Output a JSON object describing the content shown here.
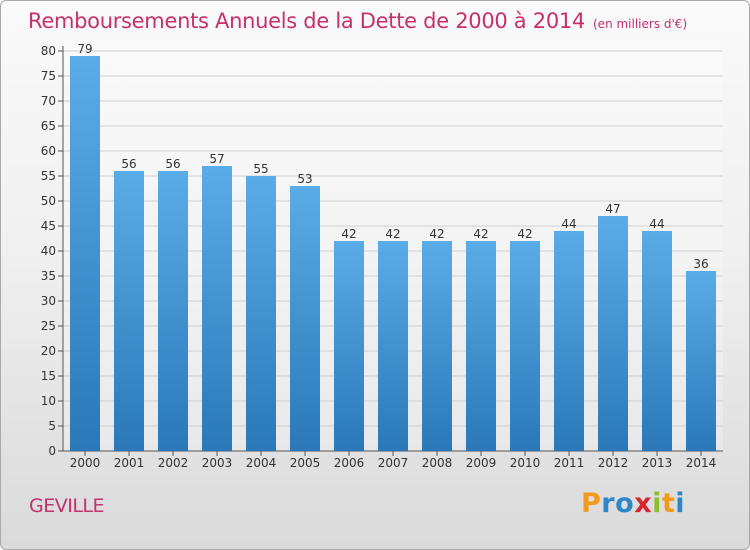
{
  "chart_data": {
    "type": "bar",
    "title": "Remboursements Annuels de la Dette de 2000 à 2014",
    "subtitle": "(en milliers d'€)",
    "categories": [
      "2000",
      "2001",
      "2002",
      "2003",
      "2004",
      "2005",
      "2006",
      "2007",
      "2008",
      "2009",
      "2010",
      "2011",
      "2012",
      "2013",
      "2014"
    ],
    "values": [
      79,
      56,
      56,
      57,
      55,
      53,
      42,
      42,
      42,
      42,
      42,
      44,
      47,
      44,
      36
    ],
    "xlabel": "",
    "ylabel": "",
    "ylim": [
      0,
      80
    ],
    "ytick_step": 5,
    "grid": "horizontal",
    "bar_color_top": "#5aace8",
    "bar_color_bottom": "#2a78b8"
  },
  "footer": {
    "commune": "GEVILLE",
    "logo_letters": [
      "P",
      "r",
      "o",
      "x",
      "i",
      "t",
      "i"
    ],
    "logo_colors": [
      "#f29a1c",
      "#2e86c9",
      "#2e86c9",
      "#d8262f",
      "#8bbf2b",
      "#f29a1c",
      "#2e86c9"
    ]
  },
  "colors": {
    "title": "#c5306d",
    "grid": "#d0d0d0",
    "axis": "#555555"
  }
}
